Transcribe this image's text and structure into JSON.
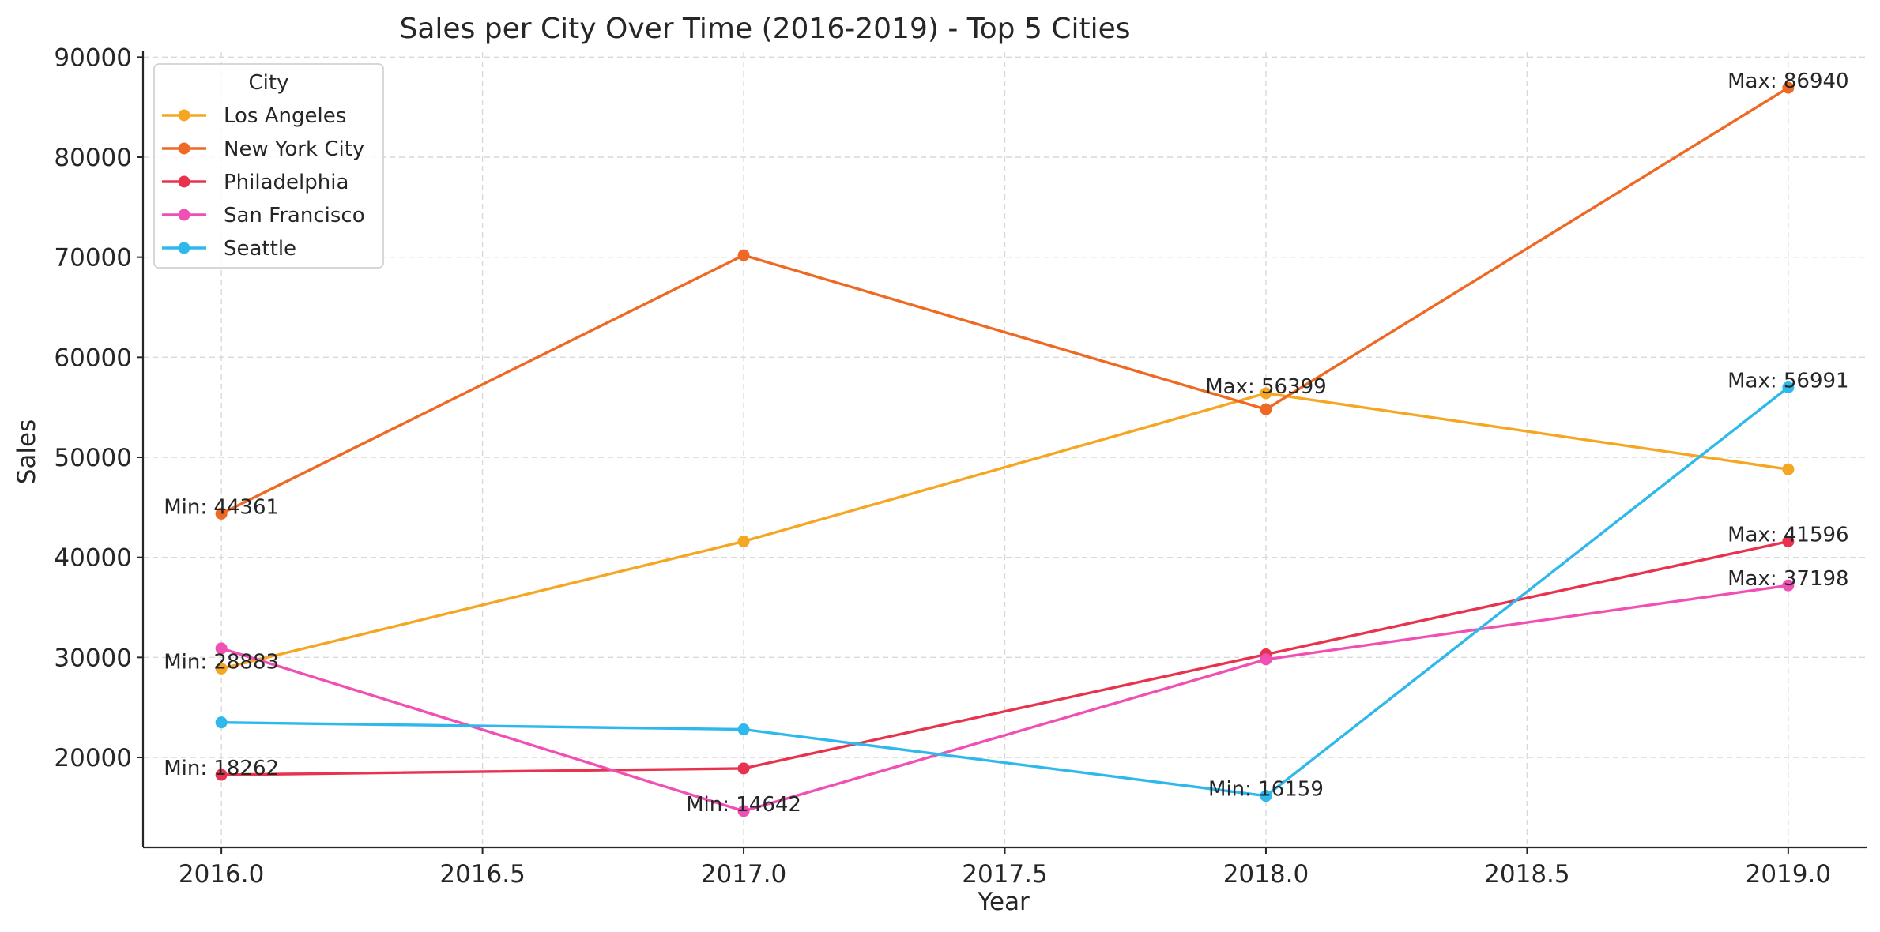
{
  "chart_data": {
    "type": "line",
    "title": "Sales per City Over Time (2016-2019) - Top 5 Cities",
    "xlabel": "Year",
    "ylabel": "Sales",
    "xlim": [
      2015.85,
      2019.15
    ],
    "ylim": [
      11000,
      90500
    ],
    "x_ticks": [
      2016.0,
      2016.5,
      2017.0,
      2017.5,
      2018.0,
      2018.5,
      2019.0
    ],
    "x_tick_labels": [
      "2016.0",
      "2016.5",
      "2017.0",
      "2017.5",
      "2018.0",
      "2018.5",
      "2019.0"
    ],
    "y_ticks": [
      20000,
      30000,
      40000,
      50000,
      60000,
      70000,
      80000,
      90000
    ],
    "y_tick_labels": [
      "20000",
      "30000",
      "40000",
      "50000",
      "60000",
      "70000",
      "80000",
      "90000"
    ],
    "grid": true,
    "legend": {
      "title": "City",
      "position": "top-left"
    },
    "series": [
      {
        "name": "Los Angeles",
        "color": "#F5A623",
        "x": [
          2016,
          2017,
          2018,
          2019
        ],
        "values": [
          28883,
          41600,
          56399,
          48800
        ]
      },
      {
        "name": "New York City",
        "color": "#EE6A24",
        "x": [
          2016,
          2017,
          2018,
          2019
        ],
        "values": [
          44361,
          70200,
          54800,
          86940
        ]
      },
      {
        "name": "Philadelphia",
        "color": "#E8334F",
        "x": [
          2016,
          2017,
          2018,
          2019
        ],
        "values": [
          18262,
          18900,
          30300,
          41596
        ]
      },
      {
        "name": "San Francisco",
        "color": "#F050B4",
        "x": [
          2016,
          2017,
          2018,
          2019
        ],
        "values": [
          30900,
          14642,
          29800,
          37198
        ]
      },
      {
        "name": "Seattle",
        "color": "#2EB8EC",
        "x": [
          2016,
          2017,
          2018,
          2019
        ],
        "values": [
          23500,
          22800,
          16159,
          56991
        ]
      }
    ],
    "annotations": [
      {
        "text": "Min: 44361",
        "x": 2016,
        "y": 44361,
        "align": "center"
      },
      {
        "text": "Min: 28883",
        "x": 2016,
        "y": 28883,
        "align": "center"
      },
      {
        "text": "Min: 18262",
        "x": 2016,
        "y": 18262,
        "align": "center"
      },
      {
        "text": "Min: 14642",
        "x": 2017,
        "y": 14642,
        "align": "center"
      },
      {
        "text": "Max: 56399",
        "x": 2018,
        "y": 56399,
        "align": "center"
      },
      {
        "text": "Min: 16159",
        "x": 2018,
        "y": 16159,
        "align": "center"
      },
      {
        "text": "Max: 86940",
        "x": 2019,
        "y": 86940,
        "align": "center"
      },
      {
        "text": "Max: 56991",
        "x": 2019,
        "y": 56991,
        "align": "center"
      },
      {
        "text": "Max: 41596",
        "x": 2019,
        "y": 41596,
        "align": "center"
      },
      {
        "text": "Max: 37198",
        "x": 2019,
        "y": 37198,
        "align": "center"
      }
    ]
  }
}
